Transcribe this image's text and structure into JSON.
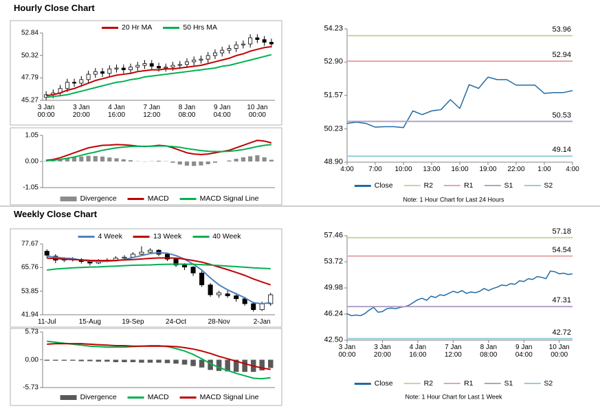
{
  "sections": [
    "Hourly Close Chart",
    "Weekly Close Chart"
  ],
  "chart_data": [
    {
      "type": "candlestick",
      "categories": [
        "3 Jan\n00:00",
        null,
        null,
        null,
        null,
        "3 Jan\n20:00",
        null,
        null,
        null,
        null,
        "4 Jan\n16:00",
        null,
        null,
        null,
        null,
        "7 Jan\n12:00",
        null,
        null,
        null,
        null,
        "8 Jan\n08:00",
        null,
        null,
        null,
        null,
        "9 Jan\n04:00",
        null,
        null,
        null,
        null,
        "10 Jan\n00:00",
        null,
        null
      ],
      "open": [
        45.6,
        45.9,
        46.1,
        46.6,
        47.3,
        47.2,
        47.6,
        48.2,
        48.5,
        48.3,
        48.8,
        48.9,
        48.7,
        49.0,
        49.2,
        49.4,
        49.1,
        48.9,
        49.0,
        49.2,
        49.3,
        49.6,
        49.8,
        49.9,
        50.3,
        50.6,
        50.9,
        51.1,
        51.5,
        51.6,
        52.3,
        52.1,
        51.8
      ],
      "high": [
        46.3,
        46.5,
        47.0,
        47.7,
        47.7,
        48.0,
        48.6,
        48.9,
        48.9,
        49.2,
        49.3,
        49.3,
        49.4,
        49.6,
        49.8,
        49.8,
        49.5,
        49.4,
        49.6,
        49.7,
        50.0,
        50.2,
        50.3,
        50.7,
        51.0,
        51.3,
        51.5,
        51.9,
        52.0,
        52.7,
        52.7,
        52.5,
        52.2
      ],
      "low": [
        45.3,
        45.5,
        45.7,
        46.2,
        46.8,
        46.8,
        47.2,
        47.8,
        47.9,
        47.9,
        48.4,
        48.3,
        48.3,
        48.6,
        48.8,
        48.7,
        48.5,
        48.5,
        48.6,
        48.8,
        48.9,
        49.2,
        49.4,
        49.5,
        49.9,
        50.2,
        50.5,
        50.7,
        51.1,
        51.2,
        51.7,
        51.4,
        51.2
      ],
      "close": [
        45.9,
        46.1,
        46.6,
        47.3,
        47.2,
        47.6,
        48.2,
        48.5,
        48.3,
        48.8,
        48.9,
        48.7,
        49.0,
        49.2,
        49.4,
        49.1,
        48.9,
        49.0,
        49.2,
        49.3,
        49.6,
        49.8,
        49.9,
        50.3,
        50.6,
        50.9,
        51.1,
        51.5,
        51.6,
        52.3,
        52.1,
        51.8,
        51.6
      ],
      "series": [
        {
          "name": "20 Hr MA",
          "color": "#c00000",
          "values": [
            45.8,
            45.9,
            46.1,
            46.4,
            46.6,
            46.9,
            47.2,
            47.5,
            47.7,
            47.9,
            48.1,
            48.2,
            48.3,
            48.5,
            48.6,
            48.7,
            48.7,
            48.8,
            48.8,
            48.9,
            49.0,
            49.1,
            49.2,
            49.4,
            49.6,
            49.8,
            50.0,
            50.3,
            50.5,
            50.8,
            51.0,
            51.2,
            51.3
          ]
        },
        {
          "name": "50 Hrs MA",
          "color": "#00b050",
          "values": [
            45.6,
            45.7,
            45.8,
            45.9,
            46.1,
            46.3,
            46.5,
            46.7,
            46.9,
            47.1,
            47.3,
            47.4,
            47.6,
            47.7,
            47.9,
            48.0,
            48.1,
            48.2,
            48.3,
            48.4,
            48.5,
            48.6,
            48.7,
            48.8,
            48.9,
            49.1,
            49.2,
            49.4,
            49.6,
            49.8,
            50.0,
            50.2,
            50.4
          ]
        }
      ],
      "ylim": [
        45.27,
        52.84
      ],
      "yticks": [
        45.27,
        47.79,
        50.32,
        52.84
      ]
    },
    {
      "type": "combo",
      "series": [
        {
          "name": "Divergence",
          "kind": "bar",
          "color": "#8c8c8c",
          "values": [
            0.02,
            0.03,
            0.07,
            0.12,
            0.17,
            0.2,
            0.23,
            0.22,
            0.2,
            0.16,
            0.13,
            0.09,
            0.05,
            0.01,
            -0.01,
            0.01,
            0.03,
            0.01,
            -0.05,
            -0.12,
            -0.17,
            -0.18,
            -0.16,
            -0.11,
            -0.05,
            0.0,
            0.04,
            0.11,
            0.17,
            0.21,
            0.25,
            0.17,
            0.07
          ]
        },
        {
          "name": "MACD",
          "kind": "line",
          "color": "#c00000",
          "values": [
            0.05,
            0.08,
            0.15,
            0.25,
            0.35,
            0.45,
            0.55,
            0.6,
            0.65,
            0.66,
            0.68,
            0.67,
            0.65,
            0.62,
            0.6,
            0.62,
            0.65,
            0.63,
            0.55,
            0.45,
            0.35,
            0.3,
            0.28,
            0.3,
            0.35,
            0.4,
            0.45,
            0.55,
            0.65,
            0.75,
            0.85,
            0.82,
            0.75
          ]
        },
        {
          "name": "MACD Signal Line",
          "kind": "line",
          "color": "#00b050",
          "values": [
            0.03,
            0.05,
            0.08,
            0.13,
            0.18,
            0.25,
            0.32,
            0.38,
            0.45,
            0.5,
            0.55,
            0.58,
            0.6,
            0.61,
            0.61,
            0.61,
            0.62,
            0.62,
            0.6,
            0.57,
            0.52,
            0.48,
            0.44,
            0.41,
            0.4,
            0.4,
            0.41,
            0.44,
            0.48,
            0.54,
            0.6,
            0.65,
            0.68
          ]
        }
      ],
      "ylim": [
        -1.05,
        1.05
      ],
      "yticks": [
        -1.05,
        {
          "value": 0,
          "label": "0.00"
        },
        1.05
      ]
    },
    {
      "type": "line",
      "categories": [
        "4:00",
        null,
        null,
        "7:00",
        null,
        null,
        "10:00",
        null,
        null,
        "13:00",
        null,
        null,
        "16:00",
        null,
        null,
        "19:00",
        null,
        null,
        "22:00",
        null,
        null,
        "1:00",
        null,
        null,
        "4:00"
      ],
      "series": [
        {
          "name": "Close",
          "color": "#1f6aa5",
          "values": [
            50.45,
            50.5,
            50.45,
            50.3,
            50.32,
            50.32,
            50.28,
            50.95,
            50.8,
            50.95,
            51.0,
            51.4,
            51.05,
            52.0,
            51.85,
            52.3,
            52.2,
            52.2,
            51.98,
            51.98,
            51.98,
            51.65,
            51.68,
            51.68,
            51.76
          ]
        },
        {
          "name": "R2",
          "color": "#c4d79b",
          "value": 53.96
        },
        {
          "name": "R1",
          "color": "#e6a5a5",
          "value": 52.94
        },
        {
          "name": "S1",
          "color": "#b1a0c7",
          "value": 50.53
        },
        {
          "name": "S2",
          "color": "#92cddc",
          "value": 49.14
        }
      ],
      "ylim": [
        48.9,
        54.23
      ],
      "yticks": [
        {
          "value": 48.9,
          "label": "48.90"
        },
        50.23,
        51.57,
        {
          "value": 52.9,
          "label": "52.90"
        },
        54.23
      ],
      "note": "Note: 1 Hour Chart for Last 24 Hours"
    },
    {
      "type": "candlestick",
      "categories": [
        "11-Jul",
        null,
        null,
        null,
        null,
        "15-Aug",
        null,
        null,
        null,
        null,
        "19-Sep",
        null,
        null,
        null,
        null,
        "24-Oct",
        null,
        null,
        null,
        null,
        "28-Nov",
        null,
        null,
        null,
        null,
        "2-Jan",
        null
      ],
      "open": [
        74.0,
        71.5,
        69.5,
        70.0,
        69.8,
        68.8,
        68.0,
        69.0,
        69.5,
        70.5,
        71.0,
        72.5,
        73.5,
        74.5,
        72.5,
        70.0,
        67.0,
        66.0,
        63.0,
        57.0,
        52.0,
        52.5,
        51.5,
        50.0,
        47.5,
        44.5,
        47.5
      ],
      "high": [
        75.0,
        72.5,
        71.0,
        71.0,
        70.5,
        69.5,
        70.0,
        70.5,
        71.5,
        72.0,
        73.5,
        76.5,
        75.5,
        75.0,
        73.0,
        70.5,
        68.0,
        66.5,
        64.0,
        58.0,
        54.0,
        54.5,
        53.0,
        51.0,
        48.5,
        48.5,
        53.0
      ],
      "low": [
        70.5,
        68.0,
        68.5,
        68.8,
        67.8,
        66.8,
        67.5,
        68.5,
        68.8,
        69.5,
        70.5,
        72.0,
        72.5,
        71.5,
        69.0,
        66.0,
        64.5,
        61.5,
        56.0,
        51.0,
        50.5,
        50.5,
        48.5,
        46.5,
        43.5,
        43.8,
        46.5
      ],
      "close": [
        72.0,
        69.5,
        70.0,
        69.8,
        68.8,
        68.0,
        69.0,
        69.5,
        70.5,
        71.0,
        72.5,
        73.5,
        74.5,
        72.5,
        70.0,
        67.0,
        66.0,
        63.0,
        57.0,
        52.0,
        53.0,
        51.5,
        50.0,
        47.5,
        44.5,
        47.5,
        52.0
      ],
      "series": [
        {
          "name": "4 Week",
          "color": "#4f81bd",
          "values": [
            71.5,
            71.0,
            70.5,
            70.3,
            69.5,
            69.0,
            68.8,
            68.9,
            69.2,
            69.8,
            70.8,
            71.8,
            72.8,
            73.3,
            73.0,
            71.8,
            70.0,
            67.5,
            64.5,
            60.5,
            57.0,
            54.5,
            52.5,
            50.5,
            48.0,
            47.5,
            48.0
          ]
        },
        {
          "name": "13 Week",
          "color": "#c00000",
          "values": [
            70.5,
            70.3,
            70.0,
            69.8,
            69.6,
            69.4,
            69.3,
            69.3,
            69.4,
            69.6,
            69.8,
            70.1,
            70.4,
            70.6,
            70.6,
            70.5,
            70.0,
            69.3,
            68.5,
            67.3,
            66.0,
            64.7,
            63.3,
            61.8,
            60.0,
            58.5,
            57.0
          ]
        },
        {
          "name": "40 Week",
          "color": "#00b050",
          "values": [
            64.5,
            65.0,
            65.3,
            65.6,
            65.8,
            66.0,
            66.1,
            66.3,
            66.5,
            66.7,
            66.9,
            67.0,
            67.1,
            67.3,
            67.4,
            67.5,
            67.5,
            67.4,
            67.2,
            67.0,
            66.8,
            66.5,
            66.2,
            65.9,
            65.6,
            65.4,
            65.2
          ]
        }
      ],
      "ylim": [
        41.94,
        77.67
      ],
      "yticks": [
        41.94,
        53.85,
        65.76,
        77.67
      ]
    },
    {
      "type": "combo",
      "series": [
        {
          "name": "Divergence",
          "kind": "bar",
          "color": "#595959",
          "values": [
            -0.2,
            -0.2,
            -0.2,
            -0.2,
            -0.3,
            -0.3,
            -0.4,
            -0.4,
            -0.5,
            -0.5,
            -0.5,
            -0.6,
            -0.6,
            -0.6,
            -0.7,
            -0.8,
            -1.0,
            -1.3,
            -1.6,
            -2.1,
            -2.3,
            -2.4,
            -2.5,
            -2.5,
            -2.5,
            -2.2,
            -1.7
          ]
        },
        {
          "name": "MACD",
          "kind": "line",
          "color": "#00b050",
          "values": [
            3.8,
            3.6,
            3.4,
            3.2,
            3.0,
            2.8,
            2.7,
            2.6,
            2.6,
            2.6,
            2.7,
            2.8,
            2.9,
            2.9,
            2.7,
            2.3,
            1.8,
            1.1,
            0.2,
            -0.8,
            -1.6,
            -2.2,
            -2.8,
            -3.3,
            -3.8,
            -3.9,
            -3.7
          ]
        },
        {
          "name": "MACD Signal Line",
          "kind": "line",
          "color": "#c00000",
          "values": [
            3.2,
            3.3,
            3.3,
            3.3,
            3.3,
            3.2,
            3.1,
            3.0,
            2.9,
            2.9,
            2.8,
            2.8,
            2.8,
            2.8,
            2.8,
            2.7,
            2.5,
            2.2,
            1.8,
            1.3,
            0.7,
            0.2,
            -0.3,
            -0.8,
            -1.3,
            -1.7,
            -2.0
          ]
        }
      ],
      "ylim": [
        -5.73,
        5.73
      ],
      "yticks": [
        -5.73,
        {
          "value": 0,
          "label": "0.00"
        },
        5.73
      ]
    },
    {
      "type": "line",
      "categories": [
        "3 Jan\n00:00",
        null,
        null,
        null,
        null,
        null,
        null,
        null,
        "3 Jan\n20:00",
        null,
        null,
        null,
        null,
        null,
        null,
        null,
        "4 Jan\n16:00",
        null,
        null,
        null,
        null,
        null,
        null,
        null,
        "7 Jan\n12:00",
        null,
        null,
        null,
        null,
        null,
        null,
        null,
        "8 Jan\n08:00",
        null,
        null,
        null,
        null,
        null,
        null,
        null,
        "9 Jan\n04:00",
        null,
        null,
        null,
        null,
        null,
        null,
        null,
        "10 Jan\n00:00",
        null,
        null,
        null
      ],
      "series": [
        {
          "name": "Close",
          "color": "#1f6aa5",
          "values": [
            46.3,
            46.0,
            46.1,
            46.0,
            46.3,
            46.8,
            47.2,
            46.5,
            46.6,
            47.0,
            47.1,
            47.0,
            47.2,
            47.3,
            47.5,
            47.9,
            48.3,
            48.5,
            48.2,
            48.8,
            48.6,
            49.0,
            48.9,
            49.2,
            49.5,
            49.3,
            49.6,
            49.2,
            49.4,
            49.3,
            49.5,
            49.9,
            49.6,
            49.9,
            50.1,
            50.4,
            50.3,
            50.6,
            50.5,
            51.0,
            50.9,
            51.3,
            51.2,
            51.6,
            51.5,
            51.3,
            52.4,
            52.3,
            52.0,
            52.1,
            51.9,
            52.0
          ]
        },
        {
          "name": "R2",
          "color": "#c4d79b",
          "value": 57.18
        },
        {
          "name": "R1",
          "color": "#e6a5a5",
          "value": 54.54
        },
        {
          "name": "S1",
          "color": "#b1a0c7",
          "value": 47.31
        },
        {
          "name": "S2",
          "color": "#92cddc",
          "value": 42.72
        }
      ],
      "ylim": [
        42.5,
        57.46
      ],
      "yticks": [
        {
          "value": 42.5,
          "label": "42.50"
        },
        46.24,
        49.98,
        53.72,
        57.46
      ],
      "note": "Note: 1 Hour Chart for Last 1 Week"
    }
  ]
}
